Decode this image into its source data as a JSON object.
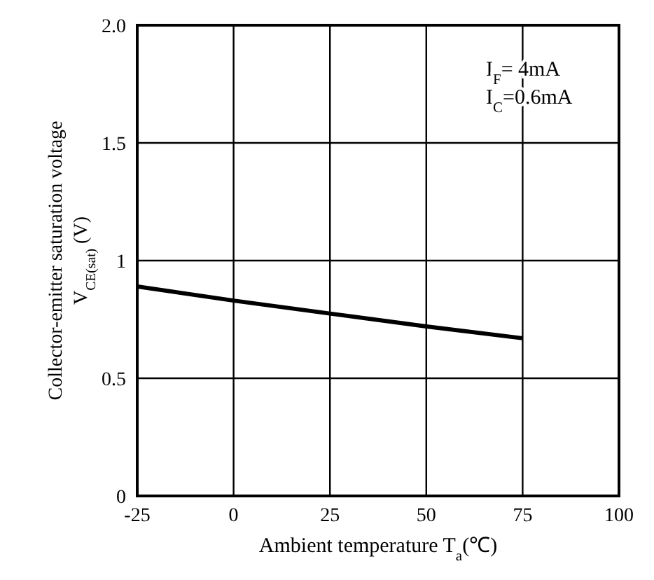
{
  "chart_data": {
    "type": "line",
    "xlabel": "Ambient temperature T$_{a}$(℃)",
    "ylabel": "Collector-emitter saturation voltage\nV$_{CE(sat)}$ (V)",
    "annotations": [
      "I$_{F}$= 4mA",
      "I$_{C}$=0.6mA"
    ],
    "x": [
      -25,
      0,
      25,
      50,
      75
    ],
    "series": [
      {
        "color": "#000000",
        "values": [
          0.89,
          0.83,
          0.775,
          0.72,
          0.67
        ]
      }
    ],
    "xlim": [
      -25,
      100
    ],
    "xticks": [
      -25,
      0,
      25,
      50,
      75,
      100
    ],
    "ylim": [
      0,
      2
    ],
    "yticks": [
      0,
      {
        "value": 0.5,
        "label": "0.5"
      },
      1,
      1.5,
      {
        "value": 2,
        "label": "2.0"
      }
    ],
    "grid": true,
    "marker": "none",
    "line_style": "solid"
  }
}
